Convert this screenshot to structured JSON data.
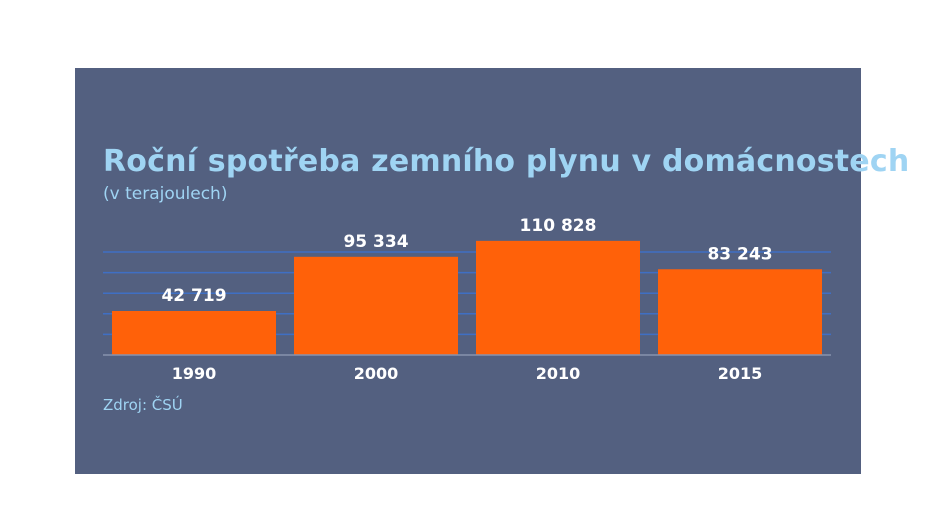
{
  "chart_data": {
    "type": "bar",
    "title": "Roční spotřeba zemního plynu v domácnostech",
    "subtitle": "(v terajoulech)",
    "categories": [
      "1990",
      "2000",
      "2010",
      "2015"
    ],
    "values": [
      42719,
      95334,
      110828,
      83243
    ],
    "value_labels": [
      "42 719",
      "95 334",
      "110 828",
      "83 243"
    ],
    "ylim": [
      0,
      140000
    ],
    "gridlines": [
      20000,
      40000,
      60000,
      80000,
      100000
    ],
    "grid": true,
    "xlabel": "",
    "ylabel": "",
    "source": "Zdroj: ČSÚ"
  },
  "colors": {
    "background": "#536080",
    "bar": "#ff6109",
    "title": "#9fd4f3",
    "grid": "#3f6fc4",
    "text": "#ffffff"
  }
}
